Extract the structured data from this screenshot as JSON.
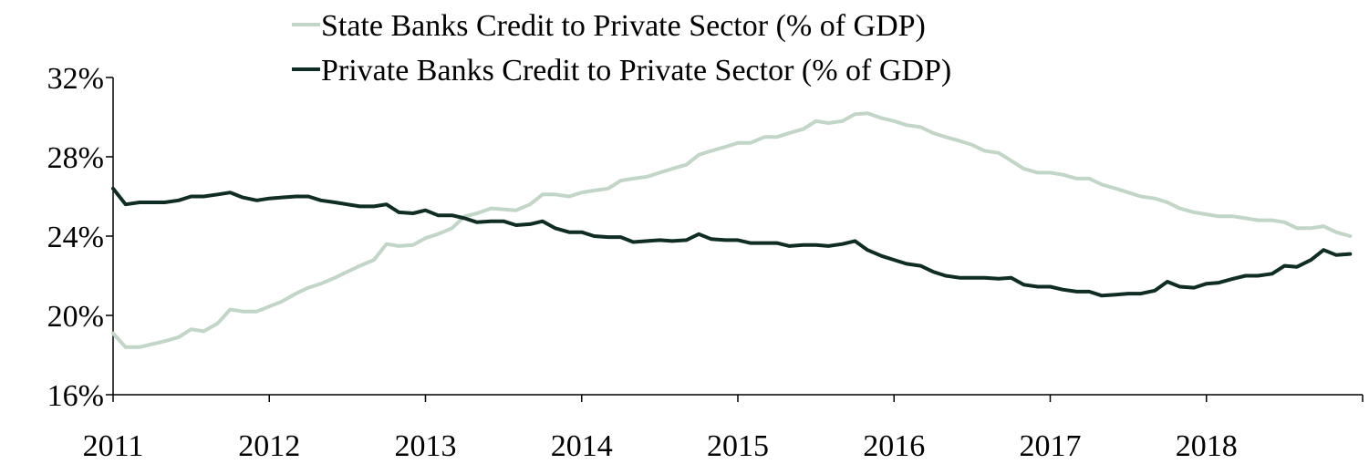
{
  "chart_data": {
    "type": "line",
    "title": "",
    "xlabel": "",
    "ylabel": "",
    "xlim": [
      2011.0,
      2019.0
    ],
    "ylim": [
      16,
      32
    ],
    "y_ticks": [
      {
        "value": 16,
        "label": "16%"
      },
      {
        "value": 20,
        "label": "20%"
      },
      {
        "value": 24,
        "label": "24%"
      },
      {
        "value": 28,
        "label": "28%"
      },
      {
        "value": 32,
        "label": "32%"
      }
    ],
    "x_ticks": [
      {
        "value": 2011,
        "label": "2011"
      },
      {
        "value": 2012,
        "label": "2012"
      },
      {
        "value": 2013,
        "label": "2013"
      },
      {
        "value": 2014,
        "label": "2014"
      },
      {
        "value": 2015,
        "label": "2015"
      },
      {
        "value": 2016,
        "label": "2016"
      },
      {
        "value": 2017,
        "label": "2017"
      },
      {
        "value": 2018,
        "label": "2018"
      }
    ],
    "grid": false,
    "legend": "top-center",
    "series": [
      {
        "name": "State Banks Credit to Private Sector (% of GDP)",
        "color": "#c2d6c8",
        "points": [
          [
            2011.0,
            19.1
          ],
          [
            2011.08,
            18.4
          ],
          [
            2011.17,
            18.4
          ],
          [
            2011.25,
            18.55
          ],
          [
            2011.33,
            18.7
          ],
          [
            2011.42,
            18.9
          ],
          [
            2011.5,
            19.3
          ],
          [
            2011.58,
            19.2
          ],
          [
            2011.67,
            19.6
          ],
          [
            2011.75,
            20.3
          ],
          [
            2011.83,
            20.2
          ],
          [
            2011.92,
            20.2
          ],
          [
            2012.0,
            20.45
          ],
          [
            2012.08,
            20.7
          ],
          [
            2012.17,
            21.1
          ],
          [
            2012.25,
            21.4
          ],
          [
            2012.33,
            21.6
          ],
          [
            2012.42,
            21.9
          ],
          [
            2012.5,
            22.2
          ],
          [
            2012.58,
            22.5
          ],
          [
            2012.67,
            22.8
          ],
          [
            2012.75,
            23.6
          ],
          [
            2012.83,
            23.5
          ],
          [
            2012.92,
            23.55
          ],
          [
            2013.0,
            23.9
          ],
          [
            2013.08,
            24.1
          ],
          [
            2013.17,
            24.4
          ],
          [
            2013.25,
            25.0
          ],
          [
            2013.33,
            25.15
          ],
          [
            2013.42,
            25.4
          ],
          [
            2013.5,
            25.35
          ],
          [
            2013.58,
            25.3
          ],
          [
            2013.67,
            25.6
          ],
          [
            2013.75,
            26.1
          ],
          [
            2013.83,
            26.1
          ],
          [
            2013.92,
            26.0
          ],
          [
            2014.0,
            26.2
          ],
          [
            2014.08,
            26.3
          ],
          [
            2014.17,
            26.4
          ],
          [
            2014.25,
            26.8
          ],
          [
            2014.33,
            26.9
          ],
          [
            2014.42,
            27.0
          ],
          [
            2014.5,
            27.2
          ],
          [
            2014.58,
            27.4
          ],
          [
            2014.67,
            27.6
          ],
          [
            2014.75,
            28.1
          ],
          [
            2014.83,
            28.3
          ],
          [
            2014.92,
            28.5
          ],
          [
            2015.0,
            28.7
          ],
          [
            2015.08,
            28.7
          ],
          [
            2015.17,
            29.0
          ],
          [
            2015.25,
            29.0
          ],
          [
            2015.33,
            29.2
          ],
          [
            2015.42,
            29.4
          ],
          [
            2015.5,
            29.8
          ],
          [
            2015.58,
            29.7
          ],
          [
            2015.67,
            29.8
          ],
          [
            2015.75,
            30.15
          ],
          [
            2015.83,
            30.2
          ],
          [
            2015.92,
            29.95
          ],
          [
            2016.0,
            29.8
          ],
          [
            2016.08,
            29.6
          ],
          [
            2016.17,
            29.5
          ],
          [
            2016.25,
            29.2
          ],
          [
            2016.33,
            29.0
          ],
          [
            2016.42,
            28.8
          ],
          [
            2016.5,
            28.6
          ],
          [
            2016.58,
            28.3
          ],
          [
            2016.67,
            28.2
          ],
          [
            2016.75,
            27.8
          ],
          [
            2016.83,
            27.4
          ],
          [
            2016.92,
            27.2
          ],
          [
            2017.0,
            27.2
          ],
          [
            2017.08,
            27.1
          ],
          [
            2017.17,
            26.9
          ],
          [
            2017.25,
            26.9
          ],
          [
            2017.33,
            26.6
          ],
          [
            2017.42,
            26.4
          ],
          [
            2017.5,
            26.2
          ],
          [
            2017.58,
            26.0
          ],
          [
            2017.67,
            25.9
          ],
          [
            2017.75,
            25.7
          ],
          [
            2017.83,
            25.4
          ],
          [
            2017.92,
            25.2
          ],
          [
            2018.0,
            25.1
          ],
          [
            2018.08,
            25.0
          ],
          [
            2018.17,
            25.0
          ],
          [
            2018.25,
            24.9
          ],
          [
            2018.33,
            24.8
          ],
          [
            2018.42,
            24.8
          ],
          [
            2018.5,
            24.7
          ],
          [
            2018.58,
            24.4
          ],
          [
            2018.67,
            24.4
          ],
          [
            2018.75,
            24.5
          ],
          [
            2018.83,
            24.2
          ],
          [
            2018.92,
            24.0
          ]
        ]
      },
      {
        "name": "Private Banks Credit to Private Sector (% of GDP)",
        "color": "#0f2d24",
        "points": [
          [
            2011.0,
            26.4
          ],
          [
            2011.08,
            25.6
          ],
          [
            2011.17,
            25.7
          ],
          [
            2011.25,
            25.7
          ],
          [
            2011.33,
            25.7
          ],
          [
            2011.42,
            25.8
          ],
          [
            2011.5,
            26.0
          ],
          [
            2011.58,
            26.0
          ],
          [
            2011.67,
            26.1
          ],
          [
            2011.75,
            26.2
          ],
          [
            2011.83,
            25.95
          ],
          [
            2011.92,
            25.8
          ],
          [
            2012.0,
            25.9
          ],
          [
            2012.08,
            25.95
          ],
          [
            2012.17,
            26.0
          ],
          [
            2012.25,
            26.0
          ],
          [
            2012.33,
            25.8
          ],
          [
            2012.42,
            25.7
          ],
          [
            2012.5,
            25.6
          ],
          [
            2012.58,
            25.5
          ],
          [
            2012.67,
            25.5
          ],
          [
            2012.75,
            25.6
          ],
          [
            2012.83,
            25.2
          ],
          [
            2012.92,
            25.15
          ],
          [
            2013.0,
            25.3
          ],
          [
            2013.08,
            25.05
          ],
          [
            2013.17,
            25.05
          ],
          [
            2013.25,
            24.9
          ],
          [
            2013.33,
            24.7
          ],
          [
            2013.42,
            24.75
          ],
          [
            2013.5,
            24.75
          ],
          [
            2013.58,
            24.55
          ],
          [
            2013.67,
            24.6
          ],
          [
            2013.75,
            24.75
          ],
          [
            2013.83,
            24.4
          ],
          [
            2013.92,
            24.2
          ],
          [
            2014.0,
            24.2
          ],
          [
            2014.08,
            24.0
          ],
          [
            2014.17,
            23.95
          ],
          [
            2014.25,
            23.95
          ],
          [
            2014.33,
            23.7
          ],
          [
            2014.42,
            23.75
          ],
          [
            2014.5,
            23.8
          ],
          [
            2014.58,
            23.75
          ],
          [
            2014.67,
            23.8
          ],
          [
            2014.75,
            24.1
          ],
          [
            2014.83,
            23.85
          ],
          [
            2014.92,
            23.8
          ],
          [
            2015.0,
            23.8
          ],
          [
            2015.08,
            23.65
          ],
          [
            2015.17,
            23.65
          ],
          [
            2015.25,
            23.65
          ],
          [
            2015.33,
            23.5
          ],
          [
            2015.42,
            23.55
          ],
          [
            2015.5,
            23.55
          ],
          [
            2015.58,
            23.5
          ],
          [
            2015.67,
            23.6
          ],
          [
            2015.75,
            23.75
          ],
          [
            2015.83,
            23.3
          ],
          [
            2015.92,
            23.0
          ],
          [
            2016.0,
            22.8
          ],
          [
            2016.08,
            22.6
          ],
          [
            2016.17,
            22.5
          ],
          [
            2016.25,
            22.2
          ],
          [
            2016.33,
            22.0
          ],
          [
            2016.42,
            21.9
          ],
          [
            2016.5,
            21.9
          ],
          [
            2016.58,
            21.9
          ],
          [
            2016.67,
            21.85
          ],
          [
            2016.75,
            21.9
          ],
          [
            2016.83,
            21.55
          ],
          [
            2016.92,
            21.45
          ],
          [
            2017.0,
            21.45
          ],
          [
            2017.08,
            21.3
          ],
          [
            2017.17,
            21.2
          ],
          [
            2017.25,
            21.2
          ],
          [
            2017.33,
            21.0
          ],
          [
            2017.42,
            21.05
          ],
          [
            2017.5,
            21.1
          ],
          [
            2017.58,
            21.1
          ],
          [
            2017.67,
            21.25
          ],
          [
            2017.75,
            21.7
          ],
          [
            2017.83,
            21.45
          ],
          [
            2017.92,
            21.4
          ],
          [
            2018.0,
            21.6
          ],
          [
            2018.08,
            21.65
          ],
          [
            2018.17,
            21.85
          ],
          [
            2018.25,
            22.0
          ],
          [
            2018.33,
            22.0
          ],
          [
            2018.42,
            22.1
          ],
          [
            2018.5,
            22.5
          ],
          [
            2018.58,
            22.45
          ],
          [
            2018.67,
            22.8
          ],
          [
            2018.75,
            23.3
          ],
          [
            2018.83,
            23.05
          ],
          [
            2018.92,
            23.1
          ]
        ]
      }
    ]
  }
}
